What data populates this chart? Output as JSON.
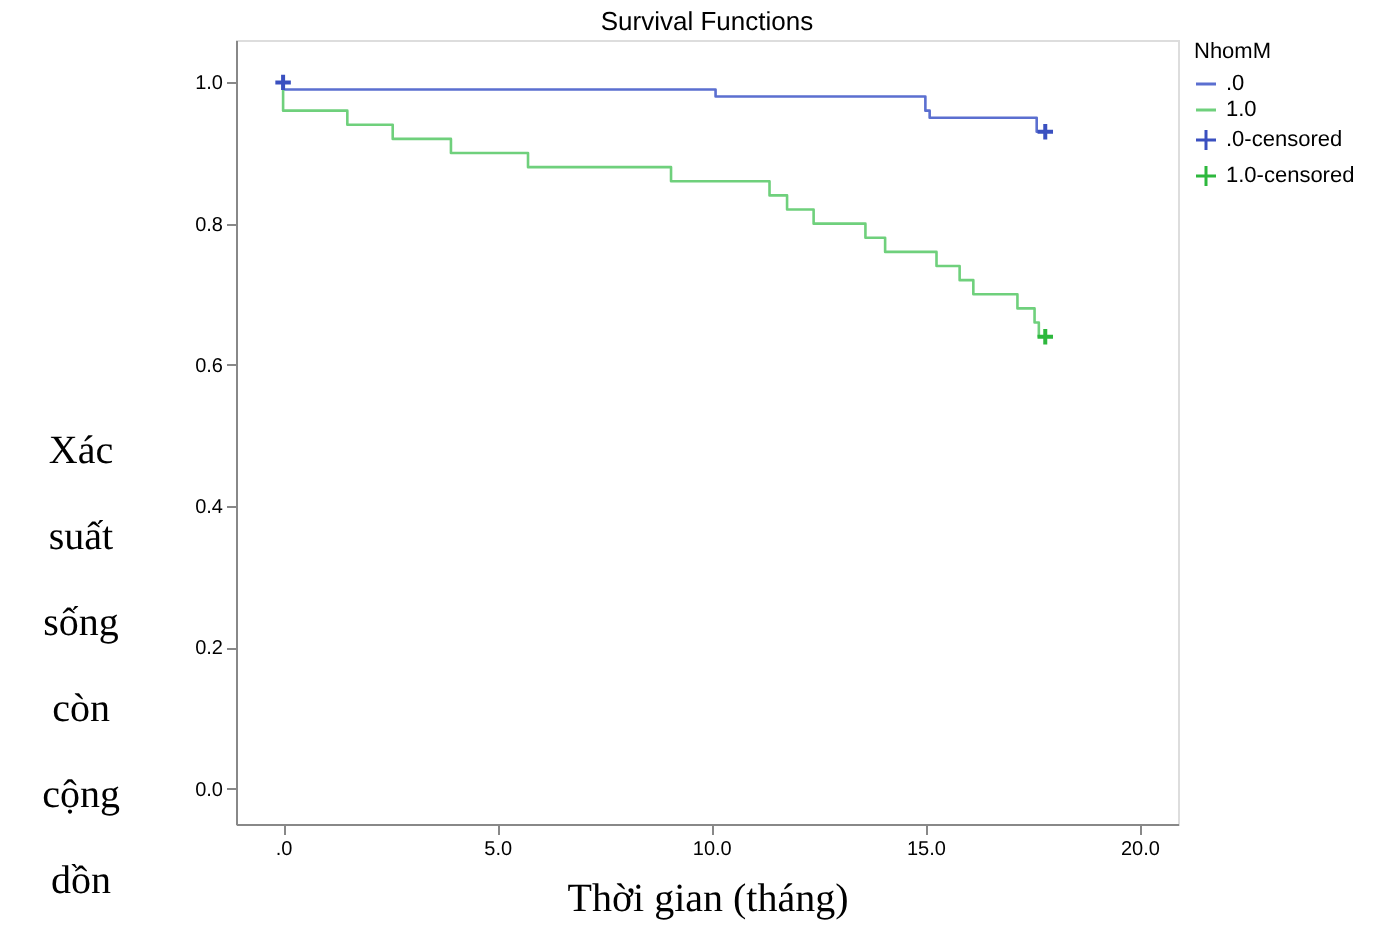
{
  "chart_data": {
    "type": "step",
    "title": "Survival Functions",
    "xlabel": "Thời gian (tháng)",
    "ylabel": "Xác suất sống còn cộng dồn",
    "legend_title": "NhomM",
    "legend": "top right",
    "grid": false,
    "xlim": [
      -1.1,
      20.9
    ],
    "ylim": [
      -0.05,
      1.06
    ],
    "xticks": [
      {
        "value": 0,
        "label": ".0"
      },
      {
        "value": 5,
        "label": "5.0"
      },
      {
        "value": 10,
        "label": "10.0"
      },
      {
        "value": 15,
        "label": "15.0"
      },
      {
        "value": 20,
        "label": "20.0"
      }
    ],
    "yticks": [
      {
        "value": 0,
        "label": "0.0"
      },
      {
        "value": 0.2,
        "label": "0.2"
      },
      {
        "value": 0.4,
        "label": "0.4"
      },
      {
        "value": 0.6,
        "label": "0.6"
      },
      {
        "value": 0.8,
        "label": "0.8"
      },
      {
        "value": 1.0,
        "label": "1.0"
      }
    ],
    "series": [
      {
        "name": ".0",
        "color": "#5b6fd0",
        "x": [
          0,
          0,
          10.1,
          15.0,
          15.1,
          17.6,
          17.8
        ],
        "values": [
          1.0,
          0.99,
          0.98,
          0.96,
          0.95,
          0.93,
          0.93
        ]
      },
      {
        "name": "1.0",
        "color": "#6fd07c",
        "x": [
          0,
          0,
          1.5,
          2.56,
          3.92,
          5.72,
          9.06,
          11.36,
          11.77,
          12.39,
          13.6,
          14.06,
          15.26,
          15.8,
          16.12,
          17.15,
          17.55,
          17.65,
          17.8
        ],
        "values": [
          1.0,
          0.96,
          0.94,
          0.92,
          0.9,
          0.88,
          0.86,
          0.84,
          0.82,
          0.8,
          0.78,
          0.76,
          0.74,
          0.72,
          0.7,
          0.68,
          0.66,
          0.64,
          0.64
        ]
      },
      {
        "name": ".0-censored",
        "type": "scatter",
        "marker": "cross",
        "color": "#3a50c0",
        "x": [
          0,
          17.8
        ],
        "values": [
          1.0,
          0.93
        ]
      },
      {
        "name": "1.0-censored",
        "type": "scatter",
        "marker": "cross",
        "color": "#2db83d",
        "x": [
          17.8
        ],
        "values": [
          0.64
        ]
      }
    ]
  }
}
